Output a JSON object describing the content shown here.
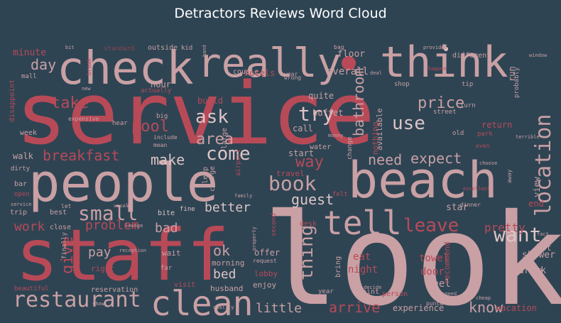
{
  "title": "Detractors Reviews Word Cloud",
  "palette": {
    "background": "#2e4453",
    "red": "#b84a58",
    "pink": "#c9a0a4",
    "light": "#ddc4c6",
    "dark": "#8c4450"
  },
  "words": [
    {
      "text": "service",
      "color": "red"
    },
    {
      "text": "look",
      "color": "pink"
    },
    {
      "text": "staff",
      "color": "red"
    },
    {
      "text": "people",
      "color": "pink"
    },
    {
      "text": "beach",
      "color": "pink"
    },
    {
      "text": "check",
      "color": "pink"
    },
    {
      "text": "really",
      "color": "pink"
    },
    {
      "text": "think",
      "color": "pink"
    },
    {
      "text": "clean",
      "color": "pink"
    },
    {
      "text": "tell",
      "color": "pink"
    },
    {
      "text": "restaurant",
      "color": "pink"
    },
    {
      "text": "location",
      "color": "pink"
    },
    {
      "text": "book",
      "color": "pink"
    },
    {
      "text": "small",
      "color": "pink"
    },
    {
      "text": "want",
      "color": "light"
    },
    {
      "text": "leave",
      "color": "red"
    },
    {
      "text": "thing",
      "color": "pink"
    },
    {
      "text": "come",
      "color": "light"
    },
    {
      "text": "ask",
      "color": "light"
    },
    {
      "text": "try",
      "color": "light"
    },
    {
      "text": "use",
      "color": "light"
    },
    {
      "text": "pool",
      "color": "red"
    },
    {
      "text": "breakfast",
      "color": "red"
    },
    {
      "text": "take",
      "color": "red"
    },
    {
      "text": "day",
      "color": "pink"
    },
    {
      "text": "price",
      "color": "pink"
    },
    {
      "text": "expect",
      "color": "pink"
    },
    {
      "text": "need",
      "color": "pink"
    },
    {
      "text": "guest",
      "color": "light"
    },
    {
      "text": "make",
      "color": "light"
    },
    {
      "text": "area",
      "color": "pink"
    },
    {
      "text": "way",
      "color": "red"
    },
    {
      "text": "bathroom",
      "color": "pink"
    },
    {
      "text": "better",
      "color": "light"
    },
    {
      "text": "problem",
      "color": "red"
    },
    {
      "text": "work",
      "color": "red"
    },
    {
      "text": "bad",
      "color": "pink"
    },
    {
      "text": "pay",
      "color": "pink"
    },
    {
      "text": "give",
      "color": "red"
    },
    {
      "text": "ok",
      "color": "pink"
    },
    {
      "text": "bed",
      "color": "light"
    },
    {
      "text": "little",
      "color": "pink"
    },
    {
      "text": "arrive",
      "color": "red"
    },
    {
      "text": "know",
      "color": "pink"
    },
    {
      "text": "experience",
      "color": "pink"
    },
    {
      "text": "vacation",
      "color": "red"
    },
    {
      "text": "night",
      "color": "red"
    },
    {
      "text": "eat",
      "color": "red"
    },
    {
      "text": "towel",
      "color": "red"
    },
    {
      "text": "feel",
      "color": "pink"
    },
    {
      "text": "door",
      "color": "red"
    },
    {
      "text": "shower",
      "color": "pink"
    },
    {
      "text": "drink",
      "color": "pink"
    },
    {
      "text": "lot",
      "color": "pink"
    },
    {
      "text": "pretty",
      "color": "red"
    },
    {
      "text": "view",
      "color": "pink"
    },
    {
      "text": "star",
      "color": "pink"
    },
    {
      "text": "end",
      "color": "red"
    },
    {
      "text": "return",
      "color": "red"
    },
    {
      "text": "hotels",
      "color": "red"
    },
    {
      "text": "overall",
      "color": "pink"
    },
    {
      "text": "minute",
      "color": "red"
    },
    {
      "text": "floor",
      "color": "pink"
    },
    {
      "text": "hour",
      "color": "pink"
    },
    {
      "text": "build",
      "color": "red"
    },
    {
      "text": "quite",
      "color": "pink"
    },
    {
      "text": "buffet",
      "color": "pink"
    },
    {
      "text": "start",
      "color": "pink"
    },
    {
      "text": "call",
      "color": "pink"
    },
    {
      "text": "walk",
      "color": "pink"
    },
    {
      "text": "week",
      "color": "pink"
    },
    {
      "text": "bar",
      "color": "pink"
    },
    {
      "text": "trip",
      "color": "pink"
    },
    {
      "text": "best",
      "color": "pink"
    },
    {
      "text": "close",
      "color": "pink"
    },
    {
      "text": "bite",
      "color": "light"
    },
    {
      "text": "sleep",
      "color": "pink"
    },
    {
      "text": "charge",
      "color": "pink"
    },
    {
      "text": "travel",
      "color": "red"
    },
    {
      "text": "large",
      "color": "pink"
    },
    {
      "text": "offer",
      "color": "pink"
    },
    {
      "text": "morning",
      "color": "pink"
    },
    {
      "text": "lobby",
      "color": "red"
    },
    {
      "text": "enjoy",
      "color": "pink"
    },
    {
      "text": "husband",
      "color": "pink"
    },
    {
      "text": "wait",
      "color": "pink"
    },
    {
      "text": "right",
      "color": "red"
    },
    {
      "text": "recommend",
      "color": "red"
    },
    {
      "text": "bring",
      "color": "pink"
    },
    {
      "text": "desk",
      "color": "red"
    },
    {
      "text": "run",
      "color": "pink"
    },
    {
      "text": "probably",
      "color": "pink"
    },
    {
      "text": "different",
      "color": "pink"
    },
    {
      "text": "outside",
      "color": "pink"
    },
    {
      "text": "standard",
      "color": "dark"
    },
    {
      "text": "kid",
      "color": "pink"
    },
    {
      "text": "disappoint",
      "color": "red"
    },
    {
      "text": "mall",
      "color": "pink"
    },
    {
      "text": "dirty",
      "color": "pink"
    },
    {
      "text": "couple",
      "color": "pink"
    },
    {
      "text": "available",
      "color": "pink"
    },
    {
      "text": "water",
      "color": "pink"
    },
    {
      "text": "nothing",
      "color": "red"
    },
    {
      "text": "change",
      "color": "pink"
    },
    {
      "text": "shop",
      "color": "pink"
    },
    {
      "text": "tip",
      "color": "pink"
    },
    {
      "text": "street",
      "color": "pink"
    },
    {
      "text": "turn",
      "color": "pink"
    },
    {
      "text": "old",
      "color": "pink"
    },
    {
      "text": "park",
      "color": "red"
    },
    {
      "text": "person",
      "color": "red"
    },
    {
      "text": "point",
      "color": "pink"
    },
    {
      "text": "visit",
      "color": "red"
    },
    {
      "text": "far",
      "color": "pink"
    },
    {
      "text": "reservation",
      "color": "pink"
    },
    {
      "text": "fine",
      "color": "light"
    },
    {
      "text": "let",
      "color": "pink"
    },
    {
      "text": "mean",
      "color": "pink"
    },
    {
      "text": "expensive",
      "color": "pink"
    },
    {
      "text": "big",
      "color": "pink"
    },
    {
      "text": "actually",
      "color": "red"
    },
    {
      "text": "hear",
      "color": "pink"
    },
    {
      "text": "airport",
      "color": "red"
    },
    {
      "text": "money",
      "color": "pink"
    },
    {
      "text": "year",
      "color": "pink"
    },
    {
      "text": "second",
      "color": "red"
    },
    {
      "text": "request",
      "color": "pink"
    },
    {
      "text": "finally",
      "color": "pink"
    },
    {
      "text": "beautiful",
      "color": "red"
    },
    {
      "text": "help",
      "color": "pink"
    },
    {
      "text": "open",
      "color": "red"
    },
    {
      "text": "felt",
      "color": "red"
    },
    {
      "text": "dinner",
      "color": "pink"
    },
    {
      "text": "away",
      "color": "pink"
    },
    {
      "text": "include",
      "color": "pink"
    },
    {
      "text": "excellent",
      "color": "red"
    },
    {
      "text": "choose",
      "color": "pink"
    },
    {
      "text": "speed",
      "color": "pink"
    },
    {
      "text": "cheap",
      "color": "pink"
    },
    {
      "text": "punta cana",
      "color": "pink"
    },
    {
      "text": "property",
      "color": "pink"
    },
    {
      "text": "reception",
      "color": "pink"
    },
    {
      "text": "lounge",
      "color": "pink"
    },
    {
      "text": "even",
      "color": "red"
    },
    {
      "text": "terrible",
      "color": "pink"
    },
    {
      "text": "fact",
      "color": "pink"
    },
    {
      "text": "window",
      "color": "pink"
    },
    {
      "text": "provide",
      "color": "pink"
    },
    {
      "text": "new",
      "color": "pink"
    },
    {
      "text": "bit",
      "color": "pink"
    },
    {
      "text": "noise",
      "color": "pink"
    },
    {
      "text": "deal",
      "color": "pink"
    },
    {
      "text": "happen",
      "color": "red"
    },
    {
      "text": "decide",
      "color": "pink"
    },
    {
      "text": "wear",
      "color": "pink"
    },
    {
      "text": "hand",
      "color": "pink"
    },
    {
      "text": "wrong",
      "color": "pink"
    },
    {
      "text": "usual",
      "color": "pink"
    },
    {
      "text": "bag",
      "color": "pink"
    },
    {
      "text": "service",
      "color": "pink"
    },
    {
      "text": "break",
      "color": "red"
    },
    {
      "text": "family",
      "color": "pink"
    },
    {
      "text": "quality",
      "color": "pink"
    },
    {
      "text": "show",
      "color": "pink"
    }
  ]
}
